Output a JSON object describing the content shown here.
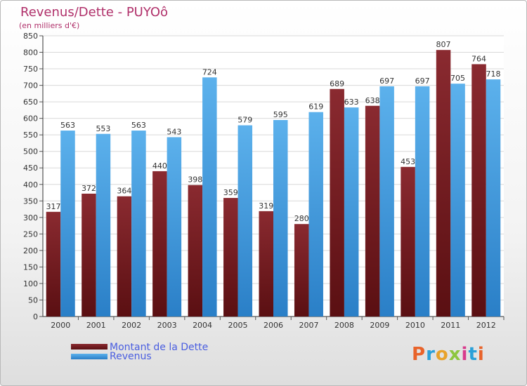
{
  "title": "Revenus/Dette - PUYOô",
  "subtitle": "(en milliers d'€)",
  "colors": {
    "dette": "#7a1f24",
    "revenus": "#4ea5e4",
    "text": "#b0306a",
    "legend_text": "#4a5ee0"
  },
  "logo": {
    "text": "Proxiti",
    "icon": "proxiti-logo"
  },
  "chart_data": {
    "type": "bar",
    "categories": [
      "2000",
      "2001",
      "2002",
      "2003",
      "2004",
      "2005",
      "2006",
      "2007",
      "2008",
      "2009",
      "2010",
      "2011",
      "2012"
    ],
    "series": [
      {
        "name": "Montant de la Dette",
        "values": [
          317,
          372,
          364,
          440,
          398,
          359,
          319,
          280,
          689,
          638,
          453,
          807,
          764
        ]
      },
      {
        "name": "Revenus",
        "values": [
          563,
          553,
          563,
          543,
          724,
          579,
          595,
          619,
          633,
          697,
          697,
          705,
          718
        ]
      }
    ],
    "ylim": [
      0,
      850
    ],
    "yticks": [
      0,
      50,
      100,
      150,
      200,
      250,
      300,
      350,
      400,
      450,
      500,
      550,
      600,
      650,
      700,
      750,
      800,
      850
    ],
    "grid": true,
    "legend": "bottom-left"
  }
}
